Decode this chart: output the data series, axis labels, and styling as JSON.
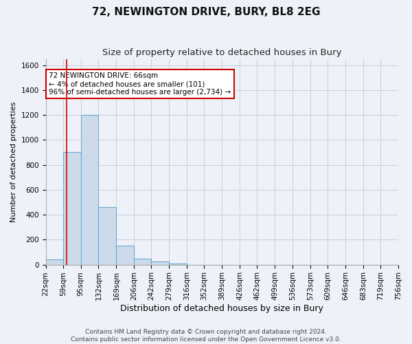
{
  "title": "72, NEWINGTON DRIVE, BURY, BL8 2EG",
  "subtitle": "Size of property relative to detached houses in Bury",
  "xlabel": "Distribution of detached houses by size in Bury",
  "ylabel": "Number of detached properties",
  "bin_edges": [
    22,
    59,
    95,
    132,
    169,
    206,
    242,
    279,
    316,
    352,
    389,
    426,
    462,
    499,
    536,
    573,
    609,
    646,
    683,
    719,
    756
  ],
  "bar_heights": [
    40,
    900,
    1200,
    460,
    150,
    50,
    25,
    10,
    0,
    0,
    0,
    0,
    0,
    0,
    0,
    0,
    0,
    0,
    0,
    0
  ],
  "bar_color": "#cddaea",
  "bar_edge_color": "#6aaad4",
  "bar_edge_width": 0.8,
  "ylim": [
    0,
    1650
  ],
  "yticks": [
    0,
    200,
    400,
    600,
    800,
    1000,
    1200,
    1400,
    1600
  ],
  "property_size": 66,
  "property_line_color": "#cc0000",
  "annotation_text": "72 NEWINGTON DRIVE: 66sqm\n← 4% of detached houses are smaller (101)\n96% of semi-detached houses are larger (2,734) →",
  "annotation_box_color": "#ffffff",
  "annotation_box_edge_color": "#cc0000",
  "background_color": "#eef2f8",
  "plot_bg_color": "#eef2f8",
  "grid_color": "#c5cfe0",
  "footer_text": "Contains HM Land Registry data © Crown copyright and database right 2024.\nContains public sector information licensed under the Open Government Licence v3.0.",
  "title_fontsize": 11,
  "subtitle_fontsize": 9.5,
  "xlabel_fontsize": 9,
  "ylabel_fontsize": 8,
  "tick_fontsize": 7.5,
  "annotation_fontsize": 7.5,
  "footer_fontsize": 6.5
}
